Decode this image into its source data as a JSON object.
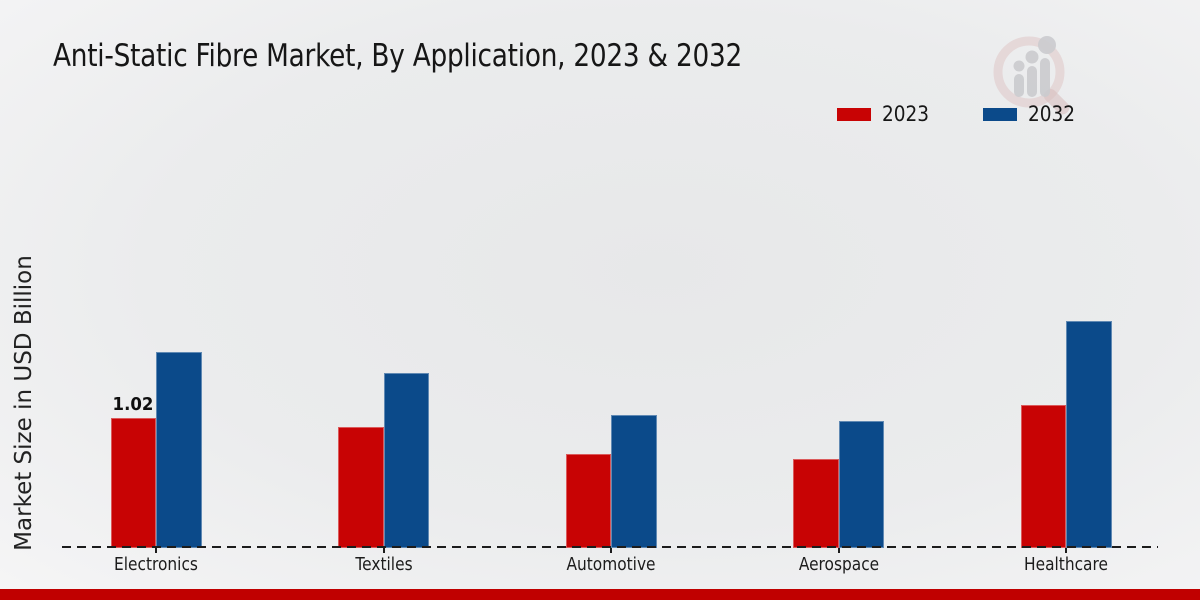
{
  "title": "Anti-Static Fibre Market, By Application, 2023 & 2032",
  "ylabel": "Market Size in USD Billion",
  "footer_color": "#c00000",
  "watermark_icon": "magnifier-growth-chart-logo",
  "legend": {
    "items": [
      {
        "label": "2023",
        "color": "#c80304"
      },
      {
        "label": "2032",
        "color": "#0b4a8a"
      }
    ]
  },
  "chart_data": {
    "type": "bar",
    "categories": [
      "Electronics",
      "Textiles",
      "Automotive",
      "Aerospace",
      "Healthcare"
    ],
    "series": [
      {
        "name": "2023",
        "color": "#c80304",
        "values": [
          1.02,
          0.95,
          0.74,
          0.7,
          1.12
        ]
      },
      {
        "name": "2032",
        "color": "#0b4a8a",
        "values": [
          1.54,
          1.37,
          1.04,
          1.0,
          1.78
        ]
      }
    ],
    "title": "Anti-Static Fibre Market, By Application, 2023 & 2032",
    "xlabel": "",
    "ylabel": "Market Size in USD Billion",
    "ylim": [
      0,
      2.2
    ],
    "grid": false,
    "legend_position": "upper right",
    "baseline_style": "dashed",
    "bar_labels": [
      {
        "series": "2023",
        "category": "Electronics",
        "text": "1.02"
      }
    ]
  }
}
